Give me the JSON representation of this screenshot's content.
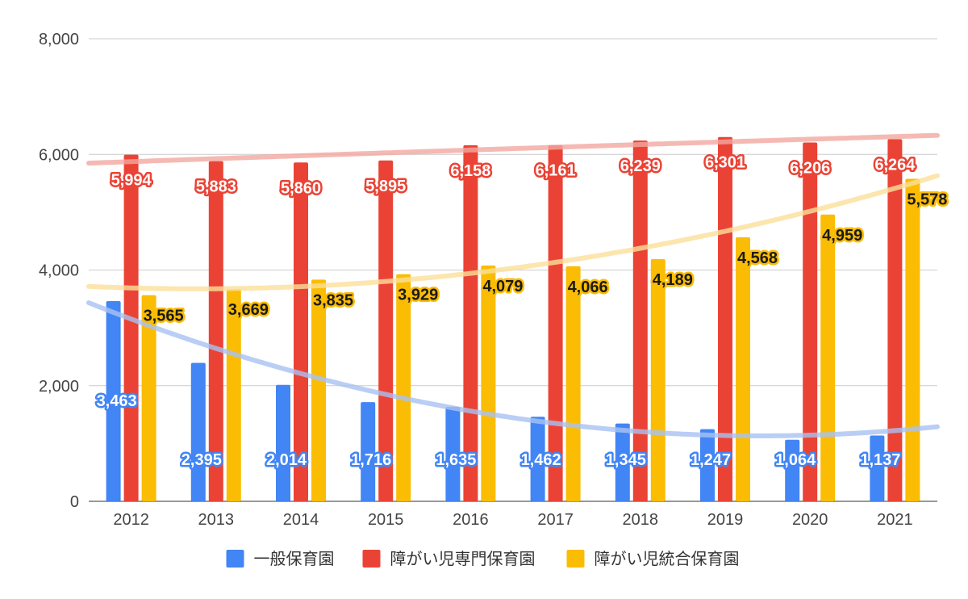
{
  "chart_data": {
    "type": "bar",
    "categories": [
      "2012",
      "2013",
      "2014",
      "2015",
      "2016",
      "2017",
      "2018",
      "2019",
      "2020",
      "2021"
    ],
    "series": [
      {
        "name": "一般保育園",
        "color": "#4285F4",
        "trend_color": "#A9C2F2",
        "values": [
          3463,
          2395,
          2014,
          1716,
          1635,
          1462,
          1345,
          1247,
          1064,
          1137
        ],
        "labels": [
          "3,463",
          "2,395",
          "2,014",
          "1,716",
          "1,635",
          "1,462",
          "1,345",
          "1,247",
          "1,064",
          "1,137"
        ]
      },
      {
        "name": "障がい児専門保育園",
        "color": "#EA4335",
        "trend_color": "#F2A7A1",
        "values": [
          5994,
          5883,
          5860,
          5895,
          6158,
          6161,
          6239,
          6301,
          6206,
          6264
        ],
        "labels": [
          "5,994",
          "5,883",
          "5,860",
          "5,895",
          "6,158",
          "6,161",
          "6,239",
          "6,301",
          "6,206",
          "6,264"
        ]
      },
      {
        "name": "障がい児統合保育園",
        "color": "#FBBC04",
        "trend_color": "#FBE09A",
        "values": [
          3565,
          3669,
          3835,
          3929,
          4079,
          4066,
          4189,
          4568,
          4959,
          5578
        ],
        "labels": [
          "3,565",
          "3,669",
          "3,835",
          "3,929",
          "4,079",
          "4,066",
          "4,189",
          "4,568",
          "4,959",
          "5,578"
        ]
      }
    ],
    "ylim": [
      0,
      8000
    ],
    "y_ticks": [
      0,
      2000,
      4000,
      6000,
      8000
    ],
    "y_tick_labels": [
      "0",
      "2,000",
      "4,000",
      "6,000",
      "8,000"
    ],
    "trendlines": "polynomial",
    "grid": true,
    "legend_position": "bottom"
  }
}
